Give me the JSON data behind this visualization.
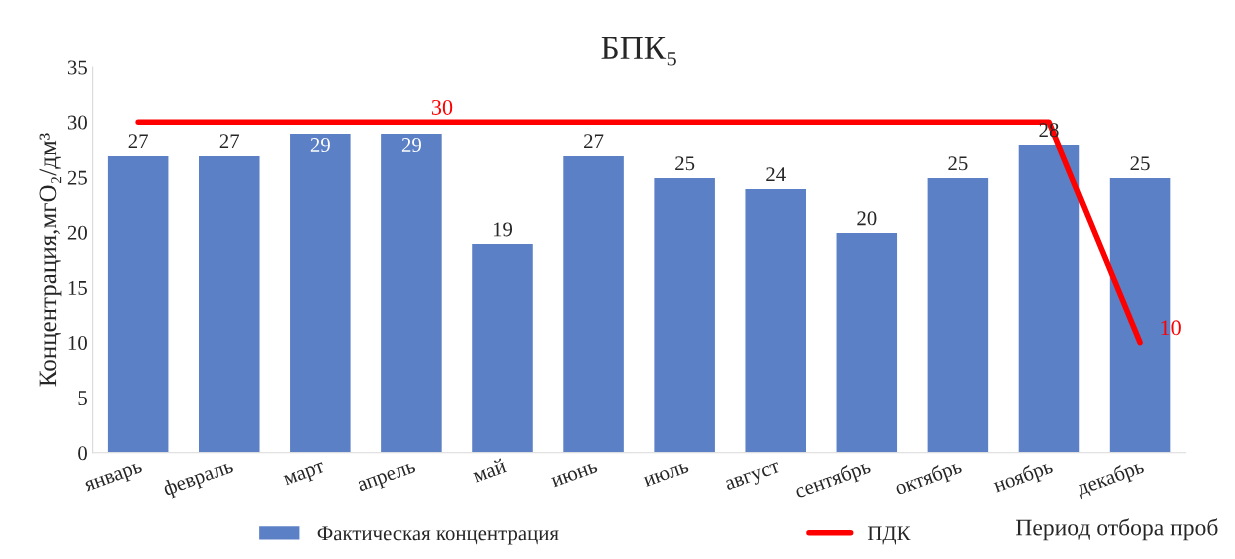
{
  "chart_data": {
    "type": "bar",
    "title": "БПК₅",
    "ylabel": "Концентрация,мгO₂/дм³",
    "xlabel": "Период отбора проб",
    "categories": [
      "январь",
      "февраль",
      "март",
      "апрель",
      "май",
      "июнь",
      "июль",
      "август",
      "сентябрь",
      "октябрь",
      "ноябрь",
      "декабрь"
    ],
    "series": [
      {
        "name": "Фактическая концентрация",
        "color": "#5b80c6",
        "values": [
          27,
          27,
          29,
          29,
          19,
          27,
          25,
          24,
          20,
          25,
          28,
          25
        ],
        "value_labels": [
          "27",
          "27",
          "29",
          "29",
          "19",
          "27",
          "25",
          "24",
          "20",
          "25",
          "28",
          "25"
        ]
      },
      {
        "name": "ПДК",
        "type": "line",
        "color": "#ff0000",
        "values": [
          30,
          30,
          30,
          30,
          30,
          30,
          30,
          30,
          30,
          30,
          30,
          10
        ],
        "value_labels": [
          null,
          null,
          null,
          "30",
          null,
          null,
          null,
          null,
          null,
          null,
          null,
          "10"
        ]
      }
    ],
    "ylim": [
      0,
      35
    ],
    "yticks": [
      0,
      5,
      10,
      15,
      20,
      25,
      30,
      35
    ],
    "grid": false,
    "legend": "bottom",
    "marker": "none",
    "line_style": "solid"
  }
}
